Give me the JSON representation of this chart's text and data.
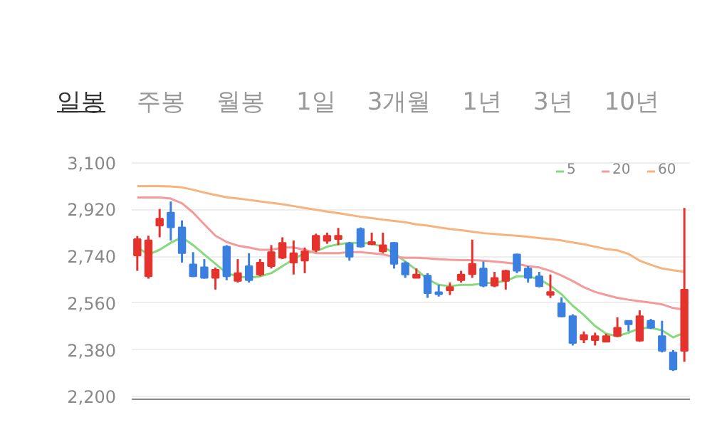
{
  "chart_data": {
    "type": "candlestick",
    "annotations": [
      "일봉",
      "주봉",
      "월봉",
      "1일",
      "3개월",
      "1년",
      "3년",
      "10년"
    ],
    "categories": [
      null,
      null,
      null,
      null,
      null,
      null,
      null,
      null,
      null,
      null,
      null,
      null,
      null,
      null,
      null,
      null,
      null,
      null,
      null,
      null,
      null,
      null,
      null,
      null,
      null,
      null,
      null,
      null,
      null,
      null,
      null,
      null,
      null,
      null,
      null,
      null,
      null,
      null,
      null,
      null,
      null,
      null,
      null,
      null,
      null,
      null,
      null,
      null,
      null,
      null
    ],
    "ylim": [
      2190,
      3110
    ],
    "yticks": [
      {
        "value": 2200,
        "label": "2,200"
      },
      {
        "value": 2380,
        "label": "2,380"
      },
      {
        "value": 2560,
        "label": "2,560"
      },
      {
        "value": 2740,
        "label": "2,740"
      },
      {
        "value": 2920,
        "label": "2,920"
      },
      {
        "value": 3100,
        "label": "3,100"
      }
    ],
    "grid": "y",
    "legend": "top right",
    "ohlc": [
      [
        2743,
        2818,
        2684,
        2806
      ],
      [
        2663,
        2819,
        2654,
        2801
      ],
      [
        2858,
        2922,
        2813,
        2885
      ],
      [
        2908,
        2951,
        2801,
        2851
      ],
      [
        2851,
        2878,
        2716,
        2752
      ],
      [
        2709,
        2756,
        2660,
        2663
      ],
      [
        2698,
        2729,
        2654,
        2657
      ],
      [
        2657,
        2697,
        2612,
        2688
      ],
      [
        2777,
        2783,
        2648,
        2663
      ],
      [
        2645,
        2729,
        2639,
        2675
      ],
      [
        2702,
        2752,
        2639,
        2648
      ],
      [
        2670,
        2729,
        2663,
        2716
      ],
      [
        2702,
        2783,
        2693,
        2756
      ],
      [
        2734,
        2813,
        2729,
        2792
      ],
      [
        2716,
        2801,
        2670,
        2752
      ],
      [
        2723,
        2774,
        2675,
        2759
      ],
      [
        2765,
        2827,
        2756,
        2819
      ],
      [
        2799,
        2831,
        2788,
        2819
      ],
      [
        2806,
        2849,
        2783,
        2819
      ],
      [
        2788,
        2795,
        2723,
        2738
      ],
      [
        2845,
        2851,
        2774,
        2777
      ],
      [
        2786,
        2831,
        2783,
        2795
      ],
      [
        2759,
        2831,
        2752,
        2783
      ],
      [
        2792,
        2795,
        2693,
        2711
      ],
      [
        2714,
        2720,
        2657,
        2670
      ],
      [
        2657,
        2693,
        2657,
        2670
      ],
      [
        2666,
        2675,
        2580,
        2598
      ],
      [
        2602,
        2630,
        2585,
        2594
      ],
      [
        2609,
        2639,
        2591,
        2621
      ],
      [
        2648,
        2684,
        2639,
        2670
      ],
      [
        2671,
        2804,
        2657,
        2711
      ],
      [
        2693,
        2720,
        2621,
        2627
      ],
      [
        2627,
        2680,
        2621,
        2657
      ],
      [
        2645,
        2688,
        2612,
        2684
      ],
      [
        2747,
        2750,
        2675,
        2684
      ],
      [
        2693,
        2702,
        2639,
        2657
      ],
      [
        2663,
        2680,
        2621,
        2625
      ],
      [
        2591,
        2670,
        2580,
        2603
      ],
      [
        2559,
        2582,
        2505,
        2508
      ],
      [
        2510,
        2517,
        2397,
        2406
      ],
      [
        2419,
        2451,
        2406,
        2437
      ],
      [
        2417,
        2446,
        2397,
        2433
      ],
      [
        2411,
        2442,
        2411,
        2433
      ],
      [
        2433,
        2505,
        2429,
        2465
      ],
      [
        2492,
        2492,
        2451,
        2478
      ],
      [
        2415,
        2532,
        2411,
        2510
      ],
      [
        2492,
        2499,
        2460,
        2465
      ],
      [
        2433,
        2492,
        2370,
        2376
      ],
      [
        2370,
        2379,
        2299,
        2304
      ],
      [
        2376,
        2926,
        2334,
        2612
      ]
    ],
    "colors": [
      "#e5322d",
      "#e5322d",
      "#e5322d",
      "#3b7fe0",
      "#3b7fe0",
      "#3b7fe0",
      "#3b7fe0",
      "#e5322d",
      "#3b7fe0",
      "#e5322d",
      "#3b7fe0",
      "#e5322d",
      "#e5322d",
      "#e5322d",
      "#e5322d",
      "#e5322d",
      "#e5322d",
      "#e5322d",
      "#e5322d",
      "#3b7fe0",
      "#3b7fe0",
      "#e5322d",
      "#e5322d",
      "#3b7fe0",
      "#3b7fe0",
      "#e5322d",
      "#3b7fe0",
      "#3b7fe0",
      "#e5322d",
      "#e5322d",
      "#e5322d",
      "#3b7fe0",
      "#e5322d",
      "#e5322d",
      "#3b7fe0",
      "#3b7fe0",
      "#3b7fe0",
      "#e5322d",
      "#3b7fe0",
      "#3b7fe0",
      "#e5322d",
      "#e5322d",
      "#e5322d",
      "#e5322d",
      "#3b7fe0",
      "#e5322d",
      "#3b7fe0",
      "#3b7fe0",
      "#3b7fe0",
      "#e5322d"
    ],
    "series": [
      {
        "type": "line",
        "name": "5",
        "color": "#86d97f",
        "values": [
          2774,
          2747,
          2765,
          2792,
          2813,
          2783,
          2747,
          2711,
          2675,
          2663,
          2657,
          2663,
          2675,
          2702,
          2729,
          2752,
          2759,
          2777,
          2786,
          2792,
          2792,
          2788,
          2777,
          2752,
          2720,
          2688,
          2652,
          2630,
          2625,
          2630,
          2630,
          2636,
          2639,
          2645,
          2663,
          2663,
          2652,
          2627,
          2594,
          2550,
          2514,
          2472,
          2442,
          2433,
          2446,
          2463,
          2465,
          2455,
          2428,
          2446
        ]
      },
      {
        "type": "line",
        "name": "20",
        "color": "#f59a9a",
        "values": [
          2966,
          2966,
          2966,
          2962,
          2944,
          2908,
          2863,
          2819,
          2795,
          2781,
          2774,
          2765,
          2765,
          2774,
          2774,
          2765,
          2752,
          2752,
          2752,
          2756,
          2756,
          2752,
          2747,
          2738,
          2734,
          2734,
          2732,
          2729,
          2727,
          2725,
          2725,
          2723,
          2720,
          2716,
          2711,
          2702,
          2697,
          2684,
          2666,
          2645,
          2621,
          2603,
          2591,
          2580,
          2573,
          2567,
          2562,
          2555,
          2541,
          2535
        ]
      },
      {
        "type": "line",
        "name": "60",
        "color": "#f8b27c",
        "values": [
          3010,
          3010,
          3010,
          3009,
          3005,
          2996,
          2985,
          2976,
          2967,
          2962,
          2957,
          2951,
          2946,
          2940,
          2933,
          2926,
          2919,
          2912,
          2906,
          2899,
          2892,
          2887,
          2881,
          2876,
          2871,
          2863,
          2858,
          2851,
          2845,
          2840,
          2835,
          2829,
          2826,
          2822,
          2819,
          2815,
          2810,
          2806,
          2801,
          2793,
          2786,
          2777,
          2768,
          2763,
          2749,
          2723,
          2707,
          2693,
          2686,
          2680
        ]
      }
    ]
  }
}
